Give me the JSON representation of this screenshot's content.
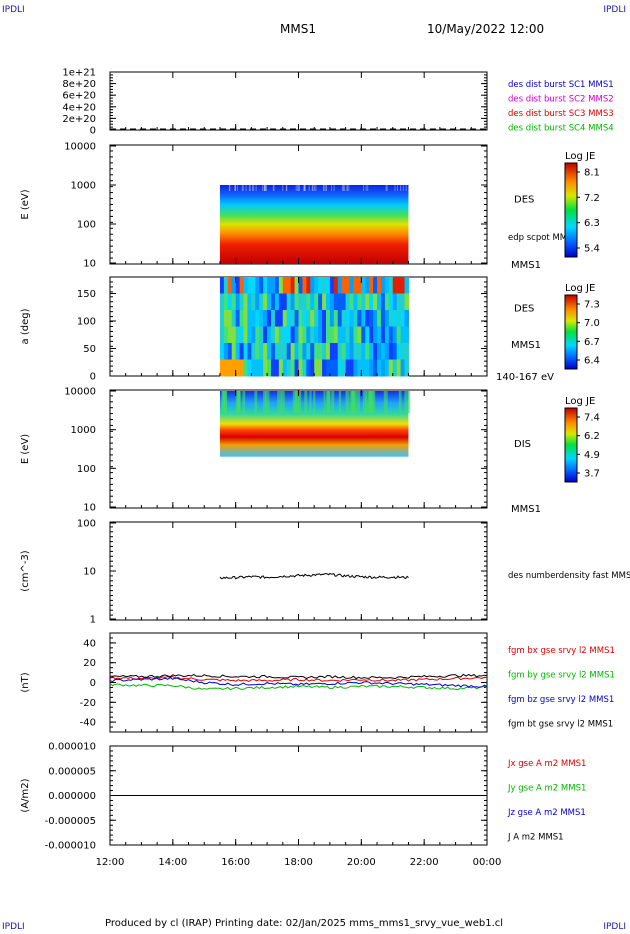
{
  "corners": {
    "label": "IPDLI"
  },
  "header": {
    "spacecraft": "MMS1",
    "datetime": "10/May/2022 12:00"
  },
  "footer": {
    "text": "Produced by cl (IRAP)   Printing date: 02/Jan/2025   mms_mms1_srvy_vue_web1.cl"
  },
  "colors": {
    "red": "#e00000",
    "green": "#00b800",
    "blue": "#0000d0",
    "magenta": "#d000d0",
    "black": "#000000"
  },
  "time_axis": {
    "start_hour": 12,
    "end_hour": 24,
    "ticks": [
      "12:00",
      "14:00",
      "16:00",
      "18:00",
      "20:00",
      "22:00",
      "00:00"
    ],
    "data_start_hour": 15.5,
    "data_end_hour": 21.5
  },
  "chart_data": [
    {
      "type": "line",
      "id": "p1",
      "yticks": [
        "0",
        "2e+20",
        "4e+20",
        "6e+20",
        "8e+20",
        "1e+21"
      ],
      "ylim": [
        0,
        1e+21
      ],
      "legend": [
        {
          "text": "des dist burst SC1 MMS1",
          "color": "#0000d0"
        },
        {
          "text": "des dist burst SC2 MMS2",
          "color": "#d000d0"
        },
        {
          "text": "des dist burst SC3 MMS3",
          "color": "#e00000"
        },
        {
          "text": "des dist burst SC4 MMS4",
          "color": "#00b800"
        }
      ]
    },
    {
      "type": "heatmap",
      "id": "p2",
      "ylabel": "E (eV)",
      "scale": "log",
      "yticks": [
        "10",
        "100",
        "1000",
        "10000"
      ],
      "instrument": "DES",
      "overlay_label": "edp scpot MMS1",
      "spacecraft": "MMS1",
      "colorbar": {
        "title": "Log JE",
        "ticks": [
          "8.1",
          "7.2",
          "6.3",
          "5.4"
        ]
      },
      "energy_range": [
        10,
        1000
      ]
    },
    {
      "type": "heatmap",
      "id": "p3",
      "ylabel": "a (deg)",
      "yticks": [
        "0",
        "50",
        "100",
        "150"
      ],
      "ylim": [
        0,
        180
      ],
      "instrument": "DES",
      "spacecraft": "MMS1",
      "energy_label": "140-167 eV",
      "colorbar": {
        "title": "Log JE",
        "ticks": [
          "7.3",
          "7.0",
          "6.7",
          "6.4"
        ]
      }
    },
    {
      "type": "heatmap",
      "id": "p4",
      "ylabel": "E (eV)",
      "scale": "log",
      "yticks": [
        "10",
        "100",
        "1000",
        "10000"
      ],
      "instrument": "DIS",
      "spacecraft": "MMS1",
      "colorbar": {
        "title": "Log JE",
        "ticks": [
          "7.4",
          "6.2",
          "4.9",
          "3.7"
        ]
      },
      "energy_range": [
        200,
        10000
      ]
    },
    {
      "type": "line",
      "id": "p5",
      "ylabel": "(cm^-3)",
      "scale": "log",
      "yticks": [
        "1",
        "10",
        "100"
      ],
      "ylim": [
        1,
        100
      ],
      "legend": [
        {
          "text": "des numberdensity fast MMS1",
          "color": "#000000"
        }
      ],
      "series": [
        {
          "name": "des numberdensity fast MMS1",
          "x": [
            15.5,
            16.0,
            16.5,
            17.0,
            17.5,
            18.0,
            18.5,
            19.0,
            19.5,
            20.0,
            20.5,
            21.0,
            21.5
          ],
          "values": [
            7.2,
            7.3,
            7.6,
            7.4,
            7.8,
            8.0,
            8.3,
            8.5,
            7.9,
            7.6,
            7.4,
            7.5,
            7.3
          ]
        }
      ]
    },
    {
      "type": "line",
      "id": "p6",
      "ylabel": "(nT)",
      "yticks": [
        "-40",
        "-20",
        "0",
        "20",
        "40"
      ],
      "ylim": [
        -50,
        50
      ],
      "legend": [
        {
          "text": "fgm bx gse srvy l2 MMS1",
          "color": "#e00000"
        },
        {
          "text": "fgm by gse srvy l2 MMS1",
          "color": "#00b800"
        },
        {
          "text": "fgm bz gse srvy l2 MMS1",
          "color": "#0000d0"
        },
        {
          "text": "fgm bt gse srvy l2 MMS1",
          "color": "#000000"
        }
      ],
      "x": [
        12,
        13,
        14,
        15,
        16,
        17,
        18,
        19,
        20,
        21,
        22,
        23,
        24
      ],
      "series": [
        {
          "name": "fgm bx gse srvy l2 MMS1",
          "color": "#e00000",
          "values": [
            5,
            4,
            5,
            3,
            2,
            2,
            3,
            2,
            3,
            2,
            3,
            4,
            5
          ]
        },
        {
          "name": "fgm by gse srvy l2 MMS1",
          "color": "#00b800",
          "values": [
            -2,
            -3,
            -3,
            -7,
            -6,
            -5,
            -4,
            -5,
            -4,
            -4,
            -5,
            -6,
            -5
          ]
        },
        {
          "name": "fgm bz gse srvy l2 MMS1",
          "color": "#0000d0",
          "values": [
            2,
            3,
            4,
            0,
            -2,
            -1,
            -2,
            -1,
            0,
            -1,
            -2,
            -3,
            -4
          ]
        },
        {
          "name": "fgm bt gse srvy l2 MMS1",
          "color": "#000000",
          "values": [
            6,
            6,
            7,
            7,
            6,
            6,
            5,
            6,
            5,
            5,
            6,
            7,
            7
          ]
        }
      ]
    },
    {
      "type": "line",
      "id": "p7",
      "ylabel": "(A/m2)",
      "yticks": [
        "-0.000010",
        "-0.000005",
        "0.000000",
        "0.000005",
        "0.000010"
      ],
      "ylim": [
        -1e-05,
        1e-05
      ],
      "legend": [
        {
          "text": "Jx gse A m2 MMS1",
          "color": "#e00000"
        },
        {
          "text": "Jy gse A m2 MMS1",
          "color": "#00b800"
        },
        {
          "text": "Jz gse A m2 MMS1",
          "color": "#0000d0"
        },
        {
          "text": "J A m2 MMS1",
          "color": "#000000"
        }
      ],
      "series": [
        {
          "name": "J A m2 MMS1",
          "x": [
            12,
            24
          ],
          "values": [
            0,
            0
          ]
        }
      ]
    }
  ]
}
